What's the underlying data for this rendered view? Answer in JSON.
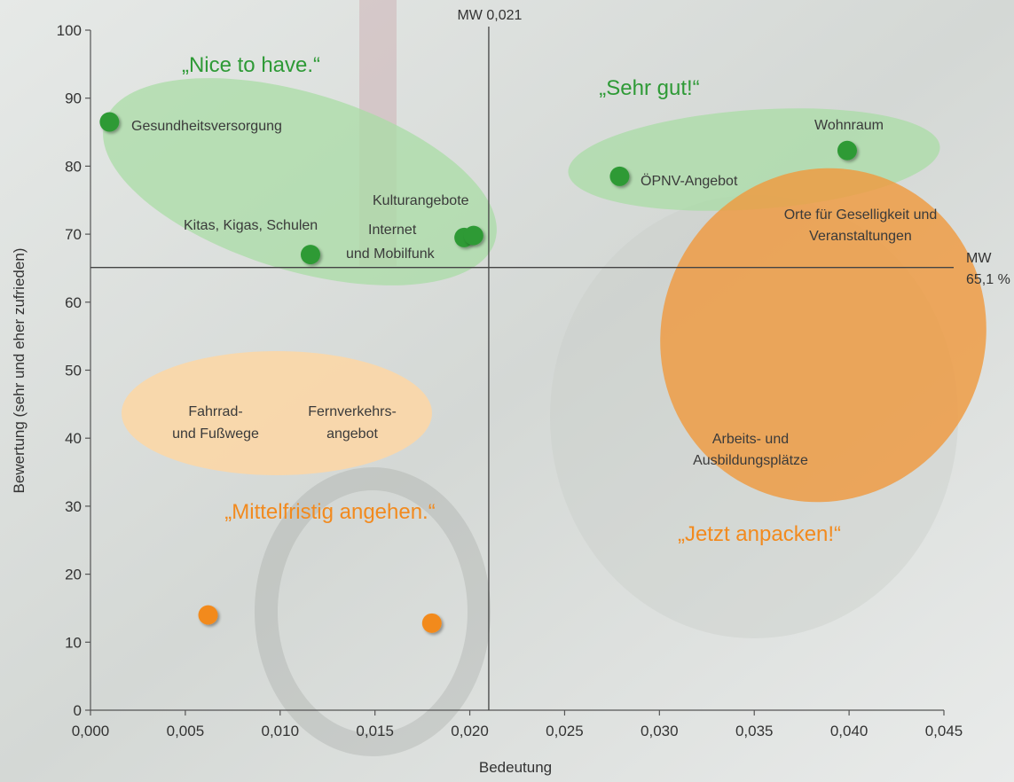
{
  "chart_data": {
    "type": "scatter",
    "xlabel": "Bedeutung",
    "ylabel": "Bewertung (sehr und eher zufrieden)",
    "xlim": [
      0,
      0.045
    ],
    "ylim": [
      0,
      100
    ],
    "x_ticks": [
      "0,000",
      "0,005",
      "0,010",
      "0,015",
      "0,020",
      "0,025",
      "0,030",
      "0,035",
      "0,040",
      "0,045"
    ],
    "y_ticks": [
      "0",
      "10",
      "20",
      "30",
      "40",
      "50",
      "60",
      "70",
      "80",
      "90",
      "100"
    ],
    "mean_x": {
      "value": 0.021,
      "label": "MW 0,021"
    },
    "mean_y": {
      "value": 65.1,
      "label_line1": "MW",
      "label_line2": "65,1 %"
    },
    "quadrant_labels": {
      "top_left": "„Nice to have.“",
      "top_right": "„Sehr gut!“",
      "bottom_left": "„Mittelfristig angehen.“",
      "bottom_right": "„Jetzt anpacken!“"
    },
    "colors": {
      "good": "#2e9a36",
      "attention": "#f28a1e",
      "good_area": "#a9dca5",
      "attention_area_strong": "#ef9a3f",
      "attention_area_light": "#fbd7a8",
      "axis": "#555555"
    },
    "points": [
      {
        "x": 0.001,
        "y": 86.5,
        "category": "good"
      },
      {
        "x": 0.0116,
        "y": 67.0,
        "category": "good"
      },
      {
        "x": 0.0197,
        "y": 69.5,
        "category": "good"
      },
      {
        "x": 0.0202,
        "y": 69.8,
        "category": "good"
      },
      {
        "x": 0.0279,
        "y": 78.5,
        "category": "good"
      },
      {
        "x": 0.0399,
        "y": 82.3,
        "category": "good"
      },
      {
        "x": 0.0062,
        "y": 14.0,
        "category": "attention"
      },
      {
        "x": 0.018,
        "y": 12.8,
        "category": "attention"
      }
    ],
    "labels": [
      {
        "text": "Gesundheitsversorgung"
      },
      {
        "text": "Kitas, Kigas, Schulen"
      },
      {
        "text": "Kulturangebote"
      },
      {
        "text": "Internet"
      },
      {
        "text": "und Mobilfunk"
      },
      {
        "text": "ÖPNV-Angebot"
      },
      {
        "text": "Wohnraum"
      },
      {
        "text": "Orte für Geselligkeit und"
      },
      {
        "text": "Veranstaltungen"
      },
      {
        "text": "Arbeits- und"
      },
      {
        "text": "Ausbildungsplätze"
      },
      {
        "text": "Fahrrad-"
      },
      {
        "text": "und Fußwege"
      },
      {
        "text": "Fernverkehrs-"
      },
      {
        "text": "angebot"
      }
    ]
  }
}
